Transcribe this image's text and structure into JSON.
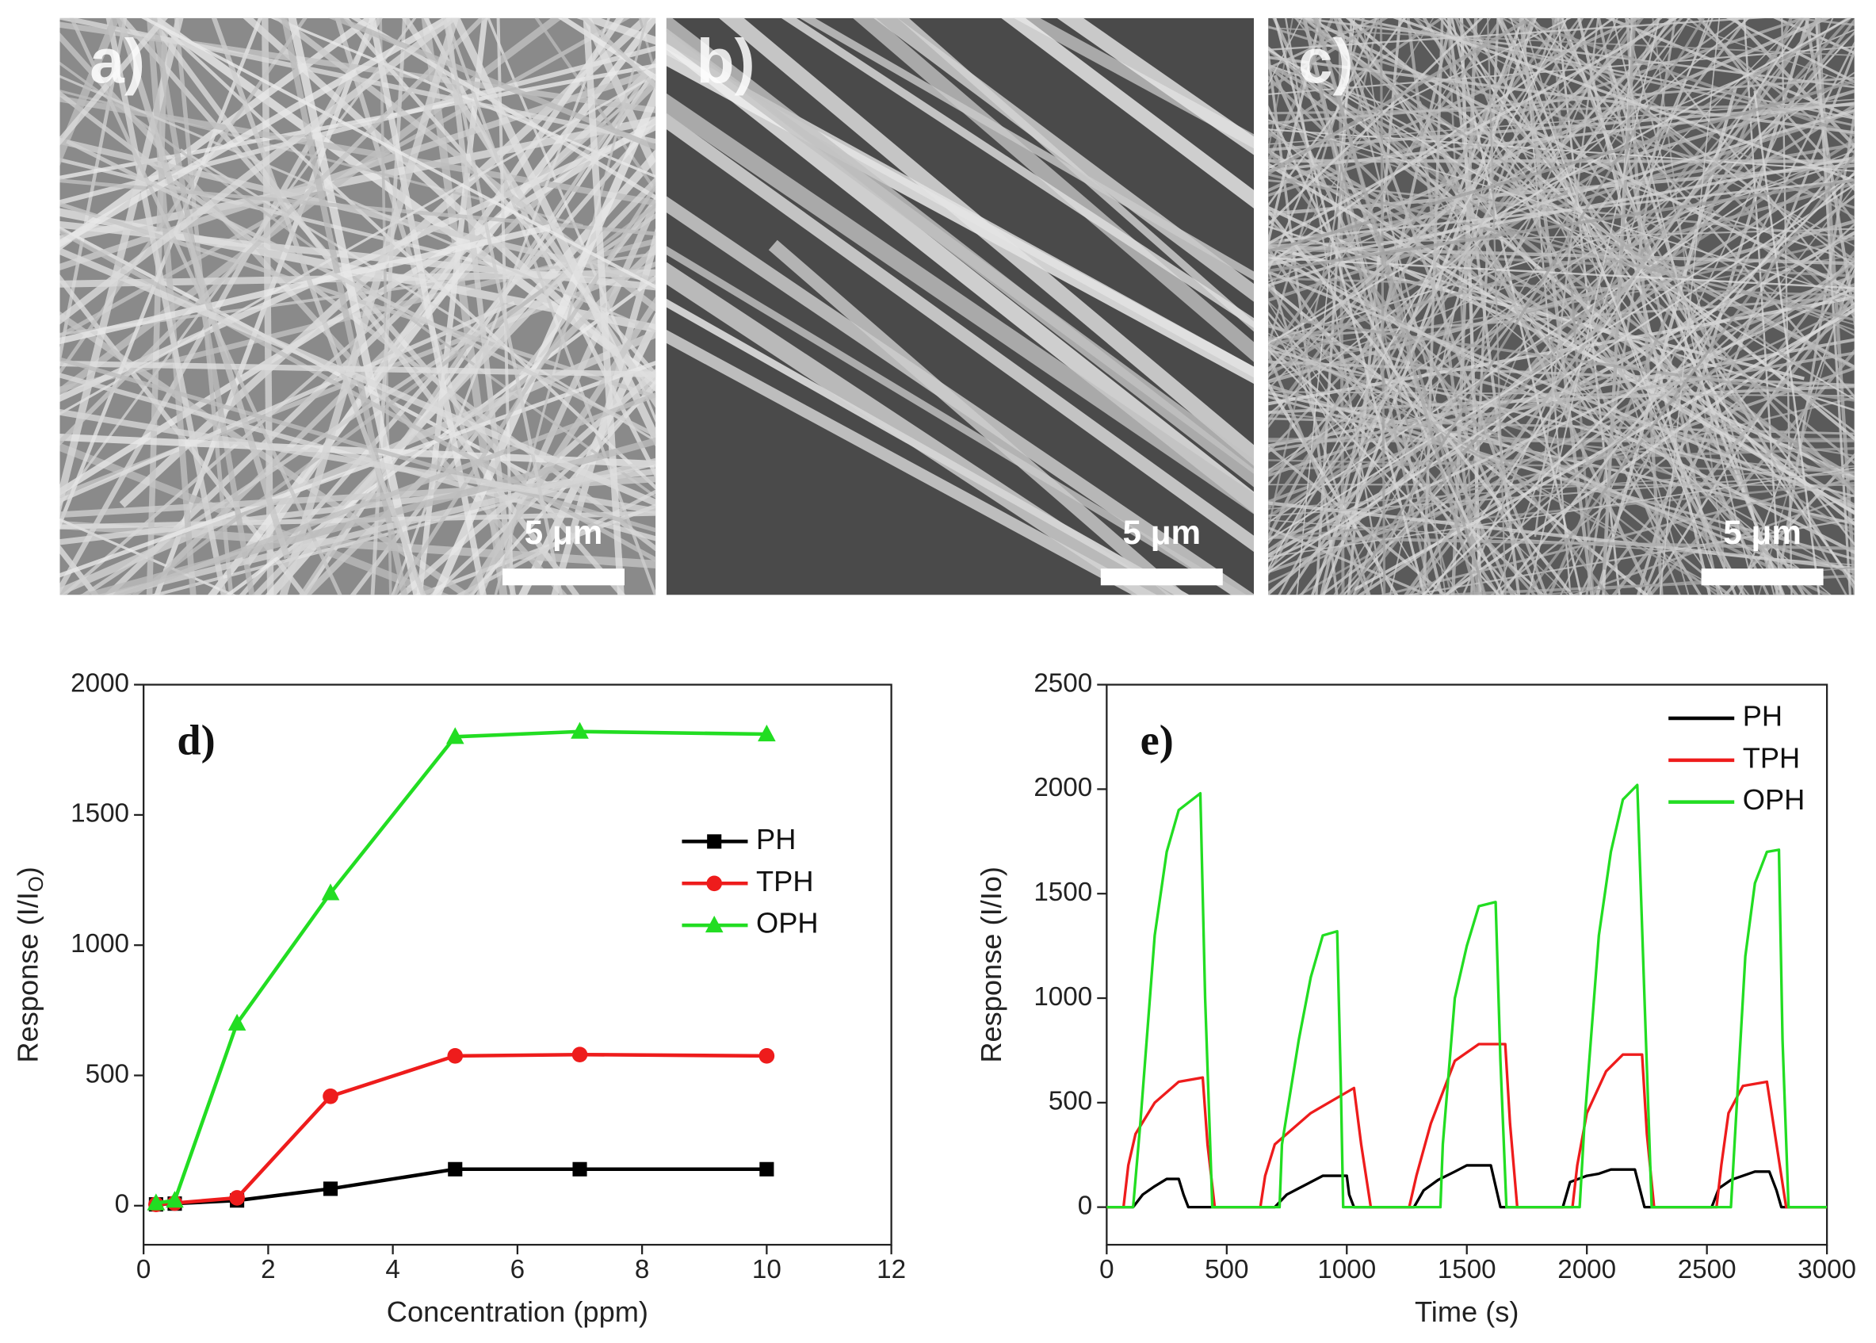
{
  "images": [
    {
      "label": "a)",
      "scale_bar": "5 μm"
    },
    {
      "label": "b)",
      "scale_bar": "5 μm"
    },
    {
      "label": "c)",
      "scale_bar": "5 μm"
    }
  ],
  "chart_data": [
    {
      "type": "line",
      "annotation": "d)",
      "xlabel": "Concentration (ppm)",
      "ylabel": "Response (I/I",
      "ylabel_sub": "O",
      "ylabel_end": ")",
      "x": [
        0.2,
        0.5,
        1.5,
        3,
        5,
        7,
        10
      ],
      "series": [
        {
          "name": "PH",
          "color": "#000000",
          "marker": "square",
          "values": [
            5,
            8,
            20,
            65,
            140,
            140,
            140
          ]
        },
        {
          "name": "TPH",
          "color": "#ee1c1c",
          "marker": "circle",
          "values": [
            5,
            10,
            30,
            420,
            575,
            580,
            575
          ]
        },
        {
          "name": "OPH",
          "color": "#22dd22",
          "marker": "triangle",
          "values": [
            10,
            20,
            700,
            1200,
            1800,
            1820,
            1810
          ]
        }
      ],
      "xlim": [
        0,
        12
      ],
      "xticks": [
        0,
        2,
        4,
        6,
        8,
        10,
        12
      ],
      "ylim": [
        -150,
        2000
      ],
      "yticks": [
        0,
        500,
        1000,
        1500,
        2000
      ],
      "legend": "center right"
    },
    {
      "type": "line",
      "annotation": "e)",
      "xlabel": "Time (s)",
      "ylabel": "Response (I/Io)",
      "series": [
        {
          "name": "PH",
          "color": "#000000",
          "x": [
            0,
            110,
            150,
            200,
            250,
            300,
            320,
            340,
            700,
            750,
            800,
            850,
            900,
            1000,
            1010,
            1030,
            1280,
            1320,
            1380,
            1450,
            1500,
            1600,
            1620,
            1640,
            1900,
            1930,
            2000,
            2050,
            2100,
            2200,
            2220,
            2240,
            2520,
            2550,
            2600,
            2650,
            2700,
            2760,
            2790,
            2810,
            3000
          ],
          "values": [
            0,
            0,
            60,
            100,
            135,
            135,
            60,
            0,
            0,
            60,
            90,
            120,
            150,
            150,
            60,
            0,
            0,
            80,
            130,
            170,
            200,
            200,
            100,
            0,
            0,
            120,
            150,
            160,
            180,
            180,
            90,
            0,
            0,
            90,
            130,
            150,
            170,
            170,
            80,
            0,
            0
          ]
        },
        {
          "name": "TPH",
          "color": "#ee1c1c",
          "x": [
            0,
            70,
            90,
            120,
            200,
            300,
            400,
            420,
            450,
            640,
            660,
            700,
            850,
            1030,
            1060,
            1100,
            1260,
            1290,
            1350,
            1450,
            1550,
            1660,
            1680,
            1710,
            1940,
            1960,
            2000,
            2080,
            2150,
            2230,
            2250,
            2280,
            2540,
            2560,
            2590,
            2650,
            2750,
            2790,
            2830,
            3000
          ],
          "values": [
            0,
            0,
            200,
            350,
            500,
            600,
            620,
            300,
            0,
            0,
            150,
            300,
            450,
            570,
            300,
            0,
            0,
            150,
            400,
            700,
            780,
            780,
            400,
            0,
            0,
            200,
            450,
            650,
            730,
            730,
            350,
            0,
            0,
            200,
            450,
            580,
            600,
            300,
            0,
            0
          ]
        },
        {
          "name": "OPH",
          "color": "#22dd22",
          "x": [
            0,
            110,
            140,
            200,
            250,
            300,
            390,
            410,
            440,
            720,
            730,
            800,
            850,
            900,
            960,
            975,
            985,
            1390,
            1400,
            1450,
            1500,
            1550,
            1620,
            1640,
            1665,
            1970,
            1990,
            2050,
            2100,
            2150,
            2210,
            2240,
            2270,
            2600,
            2620,
            2660,
            2700,
            2750,
            2800,
            2815,
            2840,
            3000
          ],
          "values": [
            0,
            0,
            400,
            1300,
            1700,
            1900,
            1980,
            1000,
            0,
            0,
            300,
            800,
            1100,
            1300,
            1320,
            600,
            0,
            0,
            300,
            1000,
            1250,
            1440,
            1460,
            700,
            0,
            0,
            400,
            1300,
            1700,
            1950,
            2020,
            1000,
            0,
            0,
            400,
            1200,
            1550,
            1700,
            1710,
            800,
            0,
            0
          ]
        }
      ],
      "xlim": [
        0,
        3000
      ],
      "xticks": [
        0,
        500,
        1000,
        1500,
        2000,
        2500,
        3000
      ],
      "ylim": [
        -180,
        2500
      ],
      "yticks": [
        0,
        500,
        1000,
        1500,
        2000,
        2500
      ],
      "legend": "upper right"
    }
  ]
}
